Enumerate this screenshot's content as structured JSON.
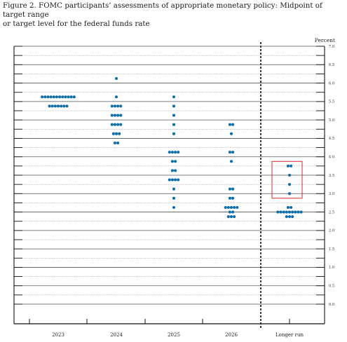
{
  "caption": {
    "line1": "Figure 2.  FOMC participants’ assessments of appropriate monetary policy:  Midpoint of target range",
    "line2": "or target level for the federal funds rate"
  },
  "chart_data": {
    "type": "scatter",
    "title": "",
    "ylabel": "Percent",
    "ylim": [
      0,
      7
    ],
    "yticks": [
      "0.0",
      "0.5",
      "1.0",
      "1.5",
      "2.0",
      "2.5",
      "3.0",
      "3.5",
      "4.0",
      "4.5",
      "5.0",
      "5.5",
      "6.0",
      "6.5",
      "7.0"
    ],
    "categories": [
      "2023",
      "2024",
      "2025",
      "2026",
      "Longer run"
    ],
    "dots": [
      {
        "category": "2023",
        "rates": [
          {
            "y": 5.625,
            "count": 12
          },
          {
            "y": 5.375,
            "count": 7
          }
        ]
      },
      {
        "category": "2024",
        "rates": [
          {
            "y": 6.125,
            "count": 1
          },
          {
            "y": 5.625,
            "count": 1
          },
          {
            "y": 5.375,
            "count": 4
          },
          {
            "y": 5.125,
            "count": 4
          },
          {
            "y": 4.875,
            "count": 4
          },
          {
            "y": 4.625,
            "count": 3
          },
          {
            "y": 4.375,
            "count": 2
          }
        ]
      },
      {
        "category": "2025",
        "rates": [
          {
            "y": 5.625,
            "count": 1
          },
          {
            "y": 5.375,
            "count": 1
          },
          {
            "y": 5.125,
            "count": 1
          },
          {
            "y": 4.875,
            "count": 1
          },
          {
            "y": 4.625,
            "count": 1
          },
          {
            "y": 4.125,
            "count": 4
          },
          {
            "y": 3.875,
            "count": 2
          },
          {
            "y": 3.625,
            "count": 2
          },
          {
            "y": 3.375,
            "count": 4
          },
          {
            "y": 3.125,
            "count": 1
          },
          {
            "y": 2.875,
            "count": 1
          },
          {
            "y": 2.625,
            "count": 1
          }
        ]
      },
      {
        "category": "2026",
        "rates": [
          {
            "y": 4.875,
            "count": 2
          },
          {
            "y": 4.625,
            "count": 1
          },
          {
            "y": 4.125,
            "count": 2
          },
          {
            "y": 3.875,
            "count": 1
          },
          {
            "y": 3.125,
            "count": 2
          },
          {
            "y": 2.875,
            "count": 2
          },
          {
            "y": 2.625,
            "count": 5
          },
          {
            "y": 2.5,
            "count": 2
          },
          {
            "y": 2.375,
            "count": 3
          }
        ]
      },
      {
        "category": "Longer run",
        "rates": [
          {
            "y": 3.75,
            "count": 2
          },
          {
            "y": 3.5,
            "count": 1
          },
          {
            "y": 3.25,
            "count": 1
          },
          {
            "y": 3.0,
            "count": 1
          },
          {
            "y": 2.625,
            "count": 2
          },
          {
            "y": 2.5,
            "count": 9
          },
          {
            "y": 2.375,
            "count": 3
          }
        ]
      }
    ],
    "highlight": {
      "category": "Longer run",
      "ymin": 2.875,
      "ymax": 3.875,
      "color": "#d42a2a"
    },
    "colors": {
      "dot": "#0e6fa8",
      "grid": "#555555",
      "axis": "#111111"
    }
  }
}
